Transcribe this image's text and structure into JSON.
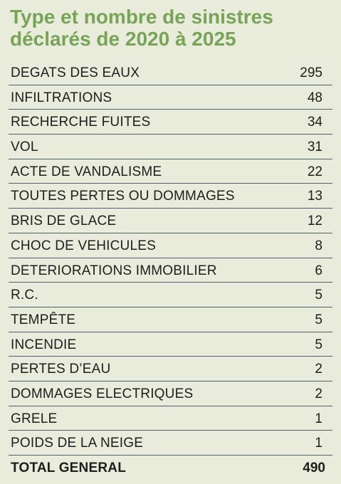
{
  "title": [
    "Type et nombre de sinistres",
    "déclarés de 2020 à 2025"
  ],
  "table": {
    "rows": [
      [
        "DEGATS DES EAUX",
        295
      ],
      [
        "INFILTRATIONS",
        48
      ],
      [
        "RECHERCHE FUITES",
        34
      ],
      [
        "VOL",
        31
      ],
      [
        "ACTE DE VANDALISME",
        22
      ],
      [
        "TOUTES PERTES OU DOMMAGES",
        13
      ],
      [
        "BRIS DE GLACE",
        12
      ],
      [
        "CHOC DE VEHICULES",
        8
      ],
      [
        "DETERIORATIONS IMMOBILIER",
        6
      ],
      [
        "R.C.",
        5
      ],
      [
        "TEMPÊTE",
        5
      ],
      [
        "INCENDIE",
        5
      ],
      [
        "PERTES D’EAU",
        2
      ],
      [
        "DOMMAGES ELECTRIQUES",
        2
      ],
      [
        "GRELE",
        1
      ],
      [
        "POIDS DE LA NEIGE",
        1
      ]
    ],
    "total": [
      "TOTAL GENERAL",
      490
    ]
  }
}
